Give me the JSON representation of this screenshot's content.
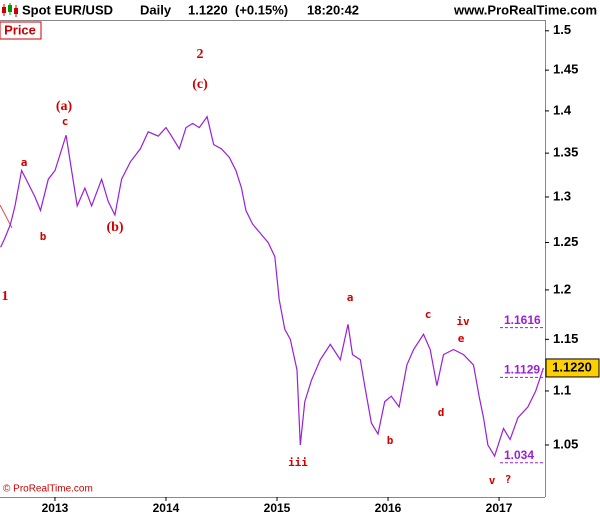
{
  "header": {
    "symbol": "Spot EUR/USD",
    "period": "Daily",
    "price": "1.1220",
    "change": "(+0.15%)",
    "time": "18:20:42",
    "site": "www.ProRealTime.com"
  },
  "footer": "© ProRealTime.com",
  "chart_data": {
    "type": "line",
    "panel_label": "Price",
    "log": true,
    "grid": false,
    "color": "#9a1fd6",
    "x": [
      2012.51,
      2012.55,
      2012.6,
      2012.64,
      2012.7,
      2012.76,
      2012.82,
      2012.87,
      2012.94,
      2013.0,
      2013.05,
      2013.1,
      2013.15,
      2013.2,
      2013.27,
      2013.33,
      2013.42,
      2013.48,
      2013.54,
      2013.6,
      2013.68,
      2013.77,
      2013.84,
      2013.93,
      2014.0,
      2014.05,
      2014.12,
      2014.18,
      2014.24,
      2014.3,
      2014.37,
      2014.43,
      2014.5,
      2014.57,
      2014.63,
      2014.68,
      2014.72,
      2014.78,
      2014.85,
      2014.92,
      2014.98,
      2015.02,
      2015.07,
      2015.12,
      2015.18,
      2015.21,
      2015.25,
      2015.31,
      2015.39,
      2015.48,
      2015.57,
      2015.64,
      2015.68,
      2015.75,
      2015.79,
      2015.85,
      2015.91,
      2015.97,
      2016.03,
      2016.1,
      2016.17,
      2016.23,
      2016.32,
      2016.38,
      2016.44,
      2016.5,
      2016.59,
      2016.68,
      2016.77,
      2016.82,
      2016.86,
      2016.9,
      2016.96,
      2017.04,
      2017.1,
      2017.17,
      2017.26,
      2017.33,
      2017.4
    ],
    "values": [
      1.245,
      1.255,
      1.27,
      1.29,
      1.33,
      1.315,
      1.3,
      1.285,
      1.32,
      1.33,
      1.35,
      1.371,
      1.33,
      1.29,
      1.31,
      1.29,
      1.32,
      1.295,
      1.28,
      1.32,
      1.34,
      1.355,
      1.375,
      1.37,
      1.38,
      1.37,
      1.355,
      1.38,
      1.385,
      1.38,
      1.393,
      1.36,
      1.355,
      1.345,
      1.33,
      1.31,
      1.285,
      1.27,
      1.26,
      1.25,
      1.235,
      1.19,
      1.16,
      1.15,
      1.12,
      1.05,
      1.09,
      1.11,
      1.13,
      1.145,
      1.13,
      1.165,
      1.135,
      1.13,
      1.105,
      1.07,
      1.06,
      1.09,
      1.095,
      1.085,
      1.125,
      1.14,
      1.155,
      1.14,
      1.105,
      1.135,
      1.14,
      1.135,
      1.125,
      1.095,
      1.075,
      1.05,
      1.04,
      1.065,
      1.055,
      1.075,
      1.085,
      1.1,
      1.122
    ],
    "xlim": [
      2012.505,
      2017.414
    ],
    "xticks": [
      2013,
      2014,
      2015,
      2016,
      2017
    ],
    "ylim": [
      1.004,
      1.514
    ],
    "yticks": [
      1.05,
      1.1,
      1.15,
      1.2,
      1.25,
      1.3,
      1.35,
      1.4,
      1.45,
      1.5
    ],
    "levels": [
      1.1616,
      1.1129,
      1.034
    ],
    "last_price": {
      "value": 1.122,
      "label": "1.1220"
    },
    "annotations": [
      "1",
      "a",
      "b",
      "(a)",
      "c",
      "(b)",
      "2",
      "(c)",
      "iii",
      "a",
      "b",
      "c",
      "iv",
      "e",
      "d",
      "v",
      "?"
    ]
  }
}
